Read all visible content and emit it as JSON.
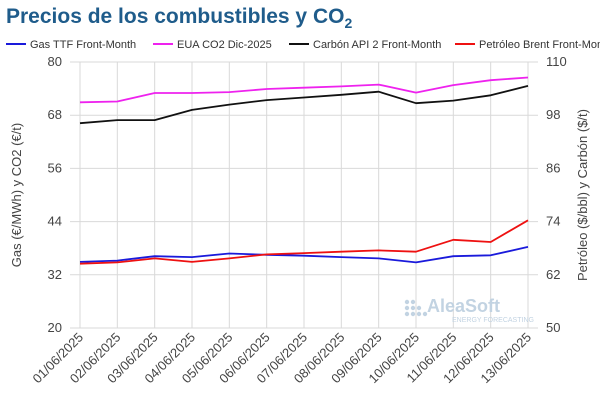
{
  "title": {
    "main": "Precios de los combustibles y CO",
    "sub": "2"
  },
  "watermark": {
    "brand": "AleaSoft",
    "tagline": "ENERGY FORECASTING"
  },
  "chart_data": {
    "type": "line",
    "categories": [
      "01/06/2025",
      "02/06/2025",
      "03/06/2025",
      "04/06/2025",
      "05/06/2025",
      "06/06/2025",
      "07/06/2025",
      "08/06/2025",
      "09/06/2025",
      "10/06/2025",
      "11/06/2025",
      "12/06/2025",
      "13/06/2025"
    ],
    "y_left": {
      "label": "Gas (€/MWh) y CO2 (€/t)",
      "range": [
        20,
        80
      ],
      "ticks": [
        20,
        32,
        44,
        56,
        68,
        80
      ]
    },
    "y_right": {
      "label": "Petróleo ($/bbl) y Carbón ($/t)",
      "range": [
        50,
        110
      ],
      "ticks": [
        50,
        62,
        74,
        86,
        98,
        110
      ]
    },
    "grid": true,
    "legend_position": "top",
    "series": [
      {
        "name": "Gas TTF Front-Month",
        "color": "#1a1adb",
        "axis": "left",
        "values": [
          34.9,
          35.2,
          36.2,
          36.0,
          36.8,
          36.5,
          36.3,
          36.0,
          35.7,
          34.8,
          36.2,
          36.4,
          38.3
        ]
      },
      {
        "name": "EUA CO2 Dic-2025",
        "color": "#ee22ee",
        "axis": "left",
        "values": [
          70.9,
          71.1,
          73.0,
          73.0,
          73.2,
          73.9,
          74.2,
          74.5,
          74.9,
          73.1,
          74.8,
          75.9,
          76.5
        ]
      },
      {
        "name": "Carbón API 2 Front-Month",
        "color": "#111111",
        "axis": "right",
        "values": [
          96.2,
          96.9,
          96.9,
          99.2,
          100.4,
          101.4,
          102.0,
          102.6,
          103.3,
          100.7,
          101.3,
          102.5,
          104.6
        ]
      },
      {
        "name": "Petróleo Brent Front-Month",
        "color": "#ee1111",
        "axis": "right",
        "values": [
          64.5,
          64.8,
          65.7,
          64.9,
          65.7,
          66.6,
          66.9,
          67.2,
          67.5,
          67.2,
          69.9,
          69.4,
          74.3
        ]
      }
    ]
  }
}
